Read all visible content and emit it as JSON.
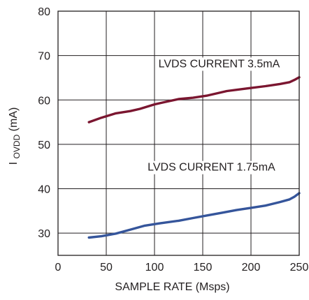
{
  "chart_data": {
    "type": "line",
    "title": "",
    "xlabel": "SAMPLE RATE (Msps)",
    "ylabel": {
      "main": "I",
      "subscript": "OVDD",
      "unit": " (mA)"
    },
    "xlim": [
      0,
      250
    ],
    "ylim": [
      25,
      80
    ],
    "xticks": [
      0,
      50,
      100,
      150,
      200,
      250
    ],
    "yticks": [
      30,
      40,
      50,
      60,
      70,
      80
    ],
    "xtick_labels": [
      "0",
      "50",
      "100",
      "150",
      "200",
      "250"
    ],
    "ytick_labels": [
      "30",
      "40",
      "50",
      "60",
      "70",
      "80"
    ],
    "grid": true,
    "series": [
      {
        "name": "LVDS CURRENT 3.5mA",
        "color": "#7b1630",
        "x": [
          32,
          45,
          60,
          75,
          85,
          100,
          110,
          125,
          140,
          155,
          175,
          200,
          215,
          230,
          240,
          245,
          250
        ],
        "y": [
          55.0,
          56.0,
          57.0,
          57.5,
          58.0,
          59.0,
          59.5,
          60.2,
          60.5,
          61.0,
          62.0,
          62.7,
          63.1,
          63.6,
          64.0,
          64.5,
          65.1
        ]
      },
      {
        "name": "LVDS CURRENT 1.75mA",
        "color": "#35559b",
        "x": [
          32,
          45,
          60,
          75,
          90,
          105,
          125,
          140,
          155,
          170,
          185,
          200,
          215,
          230,
          240,
          245,
          250
        ],
        "y": [
          29.0,
          29.3,
          29.9,
          30.8,
          31.7,
          32.2,
          32.8,
          33.4,
          34.0,
          34.6,
          35.2,
          35.7,
          36.2,
          37.0,
          37.6,
          38.2,
          39.0
        ]
      }
    ],
    "annotations": [
      {
        "text": "LVDS CURRENT 3.5mA",
        "x": 167,
        "y": 68.3
      },
      {
        "text": "LVDS CURRENT 1.75mA",
        "x": 159,
        "y": 45.0
      }
    ]
  }
}
